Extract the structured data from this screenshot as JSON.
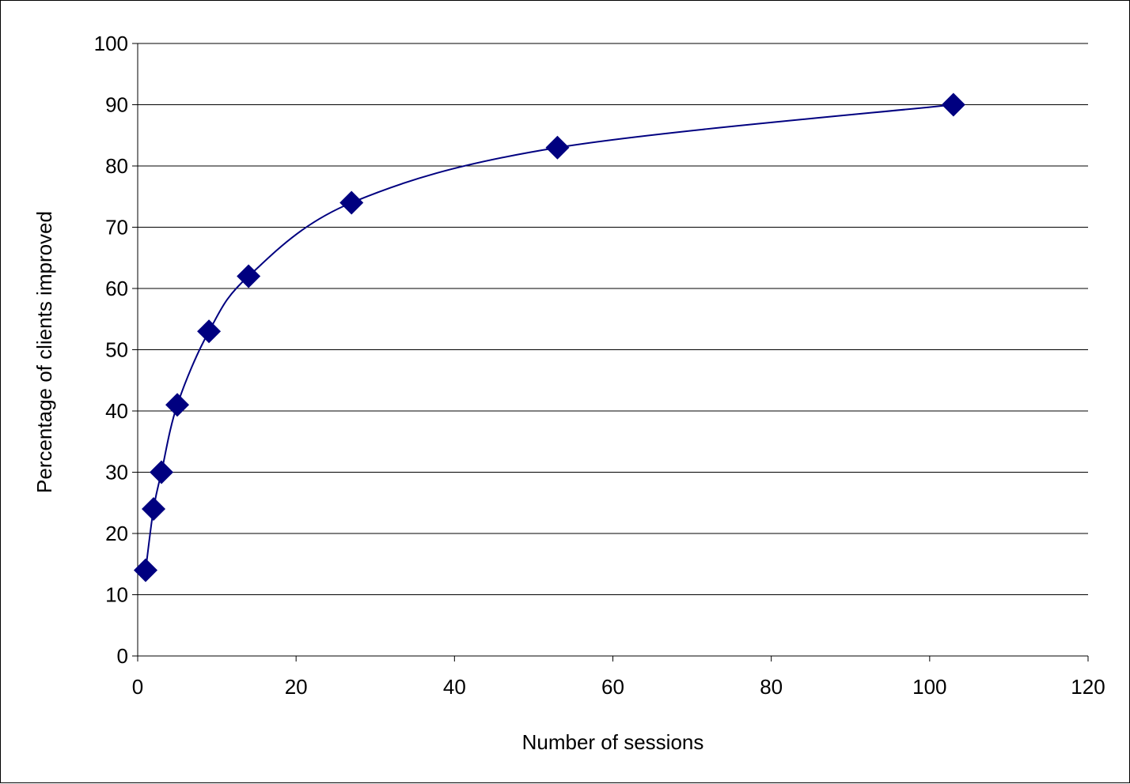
{
  "chart_data": {
    "type": "scatter",
    "title": "",
    "xlabel": "Number of sessions",
    "ylabel": "Percentage of clients improved",
    "xlim": [
      0,
      120
    ],
    "ylim": [
      0,
      100
    ],
    "x_ticks": [
      0,
      20,
      40,
      60,
      80,
      100,
      120
    ],
    "y_ticks": [
      0,
      10,
      20,
      30,
      40,
      50,
      60,
      70,
      80,
      90,
      100
    ],
    "x_tick_labels": [
      "0",
      "20",
      "40",
      "60",
      "80",
      "100",
      "120"
    ],
    "y_tick_labels": [
      "0",
      "10",
      "20",
      "30",
      "40",
      "50",
      "60",
      "70",
      "80",
      "90",
      "100"
    ],
    "grid": "horizontal",
    "legend": "none",
    "series": [
      {
        "marker": "diamond",
        "line": "smooth",
        "x": [
          1,
          2,
          3,
          5,
          9,
          14,
          27,
          53,
          103
        ],
        "y": [
          14,
          24,
          30,
          41,
          53,
          62,
          74,
          83,
          90
        ]
      }
    ]
  },
  "colors": {
    "series": "#000080",
    "grid": "#000000",
    "background": "#ffffff"
  }
}
